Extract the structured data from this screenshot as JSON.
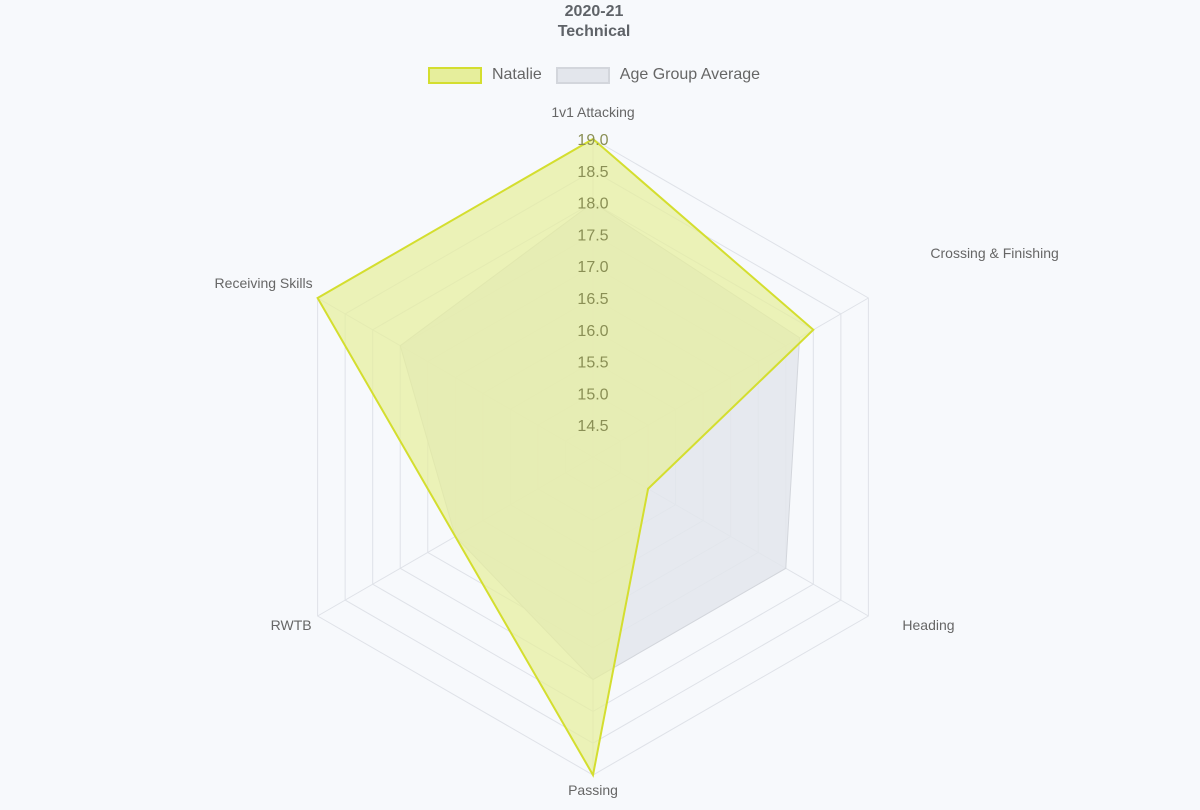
{
  "chart_data": {
    "type": "radar",
    "title": [
      "2020-21",
      "Technical"
    ],
    "categories": [
      "1v1 Attacking",
      "Crossing & Finishing",
      "Heading",
      "Passing",
      "RWTB",
      "Receiving Skills"
    ],
    "r_ticks": [
      "14.5",
      "15.0",
      "15.5",
      "16.0",
      "16.5",
      "17.0",
      "17.5",
      "18.0",
      "18.5",
      "19.0"
    ],
    "rlim": [
      14.0,
      19.0
    ],
    "series": [
      {
        "name": "Natalie",
        "values": [
          19.0,
          18.0,
          15.0,
          19.0,
          16.5,
          19.0
        ],
        "fill": "#e6ee9c",
        "stroke": "#d4de2f"
      },
      {
        "name": "Age Group Average",
        "values": [
          18.0,
          17.75,
          17.5,
          17.5,
          16.5,
          17.5
        ],
        "fill": "#e3e6ec",
        "stroke": "#d3d6dc"
      }
    ],
    "grid": true,
    "legend": "top"
  }
}
